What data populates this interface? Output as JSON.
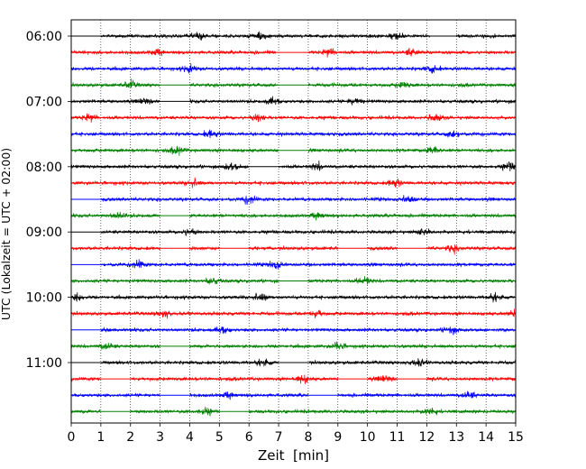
{
  "chart_data": {
    "type": "line",
    "title": "",
    "xlabel": "Zeit  [min]",
    "ylabel": "UTC (Lokalzeit = UTC + 02:00)",
    "xlim": [
      0,
      15
    ],
    "xticks": [
      0,
      1,
      2,
      3,
      4,
      5,
      6,
      7,
      8,
      9,
      10,
      11,
      12,
      13,
      14,
      15
    ],
    "vertical_grid": "dotted, every 1 min",
    "start_time": "06:00",
    "minutes_per_line": 15,
    "yticks": [
      "06:00",
      "07:00",
      "08:00",
      "09:00",
      "10:00",
      "11:00"
    ],
    "line_colors": [
      "#000000",
      "#ff0000",
      "#0000ff",
      "#008000"
    ],
    "traces": [
      {
        "start": "06:00",
        "color": "#000000",
        "gaps": [
          [
            0,
            1
          ],
          [
            12.1,
            13
          ]
        ],
        "events": [
          6.4,
          4.3,
          11.0
        ]
      },
      {
        "start": "06:15",
        "color": "#ff0000",
        "gaps": [
          [
            6.9,
            8
          ]
        ],
        "events": [
          11.5,
          2.9,
          8.7
        ]
      },
      {
        "start": "06:30",
        "color": "#0000ff",
        "gaps": [],
        "events": [
          12.2,
          4.0
        ]
      },
      {
        "start": "06:45",
        "color": "#008000",
        "gaps": [
          [
            3,
            4
          ],
          [
            7,
            8
          ]
        ],
        "events": [
          2.0,
          11.2
        ]
      },
      {
        "start": "07:00",
        "color": "#000000",
        "gaps": [
          [
            3,
            4
          ]
        ],
        "events": [
          6.8,
          2.5,
          9.6
        ]
      },
      {
        "start": "07:15",
        "color": "#ff0000",
        "gaps": [],
        "events": [
          0.6,
          6.3,
          12.3
        ]
      },
      {
        "start": "07:30",
        "color": "#0000ff",
        "gaps": [],
        "events": [
          4.7,
          12.9
        ]
      },
      {
        "start": "07:45",
        "color": "#008000",
        "gaps": [
          [
            7,
            8
          ]
        ],
        "events": [
          12.2,
          3.6
        ]
      },
      {
        "start": "08:00",
        "color": "#000000",
        "gaps": [
          [
            6,
            7
          ]
        ],
        "events": [
          5.4,
          14.8,
          8.3
        ]
      },
      {
        "start": "08:15",
        "color": "#ff0000",
        "gaps": [],
        "events": [
          10.9,
          4.1
        ]
      },
      {
        "start": "08:30",
        "color": "#0000ff",
        "gaps": [
          [
            0,
            1
          ]
        ],
        "events": [
          6.0,
          11.4
        ]
      },
      {
        "start": "08:45",
        "color": "#008000",
        "gaps": [
          [
            3,
            4
          ]
        ],
        "events": [
          1.6,
          8.3
        ]
      },
      {
        "start": "09:00",
        "color": "#000000",
        "gaps": [
          [
            0,
            1
          ]
        ],
        "events": [
          4.0,
          11.9
        ]
      },
      {
        "start": "09:15",
        "color": "#ff0000",
        "gaps": [
          [
            3,
            4
          ],
          [
            5,
            6
          ],
          [
            9,
            10
          ],
          [
            11,
            12
          ]
        ],
        "events": [
          12.9
        ]
      },
      {
        "start": "09:30",
        "color": "#0000ff",
        "gaps": [
          [
            0,
            1
          ]
        ],
        "events": [
          6.9,
          2.3
        ]
      },
      {
        "start": "09:45",
        "color": "#008000",
        "gaps": [
          [
            7,
            8
          ]
        ],
        "events": [
          4.8,
          9.9
        ]
      },
      {
        "start": "10:00",
        "color": "#000000",
        "gaps": [],
        "events": [
          14.3,
          0.2,
          6.4
        ]
      },
      {
        "start": "10:15",
        "color": "#ff0000",
        "gaps": [],
        "events": [
          8.3,
          14.9,
          3.1
        ]
      },
      {
        "start": "10:30",
        "color": "#0000ff",
        "gaps": [
          [
            0,
            1
          ]
        ],
        "events": [
          12.8,
          5.1
        ]
      },
      {
        "start": "10:45",
        "color": "#008000",
        "gaps": [
          [
            3,
            4
          ]
        ],
        "events": [
          1.2,
          9.0
        ]
      },
      {
        "start": "11:00",
        "color": "#000000",
        "gaps": [
          [
            0,
            1
          ],
          [
            7,
            8
          ]
        ],
        "events": [
          6.5,
          11.7
        ]
      },
      {
        "start": "11:15",
        "color": "#ff0000",
        "gaps": [
          [
            1,
            2
          ],
          [
            9,
            10
          ],
          [
            11,
            12
          ]
        ],
        "events": [
          7.8,
          10.6
        ]
      },
      {
        "start": "11:30",
        "color": "#0000ff",
        "gaps": [
          [
            3,
            4
          ],
          [
            8,
            9
          ]
        ],
        "events": [
          5.3,
          13.4
        ]
      },
      {
        "start": "11:45",
        "color": "#008000",
        "gaps": [
          [
            1,
            2
          ],
          [
            5,
            6
          ]
        ],
        "events": [
          4.5,
          12.1
        ]
      }
    ]
  }
}
